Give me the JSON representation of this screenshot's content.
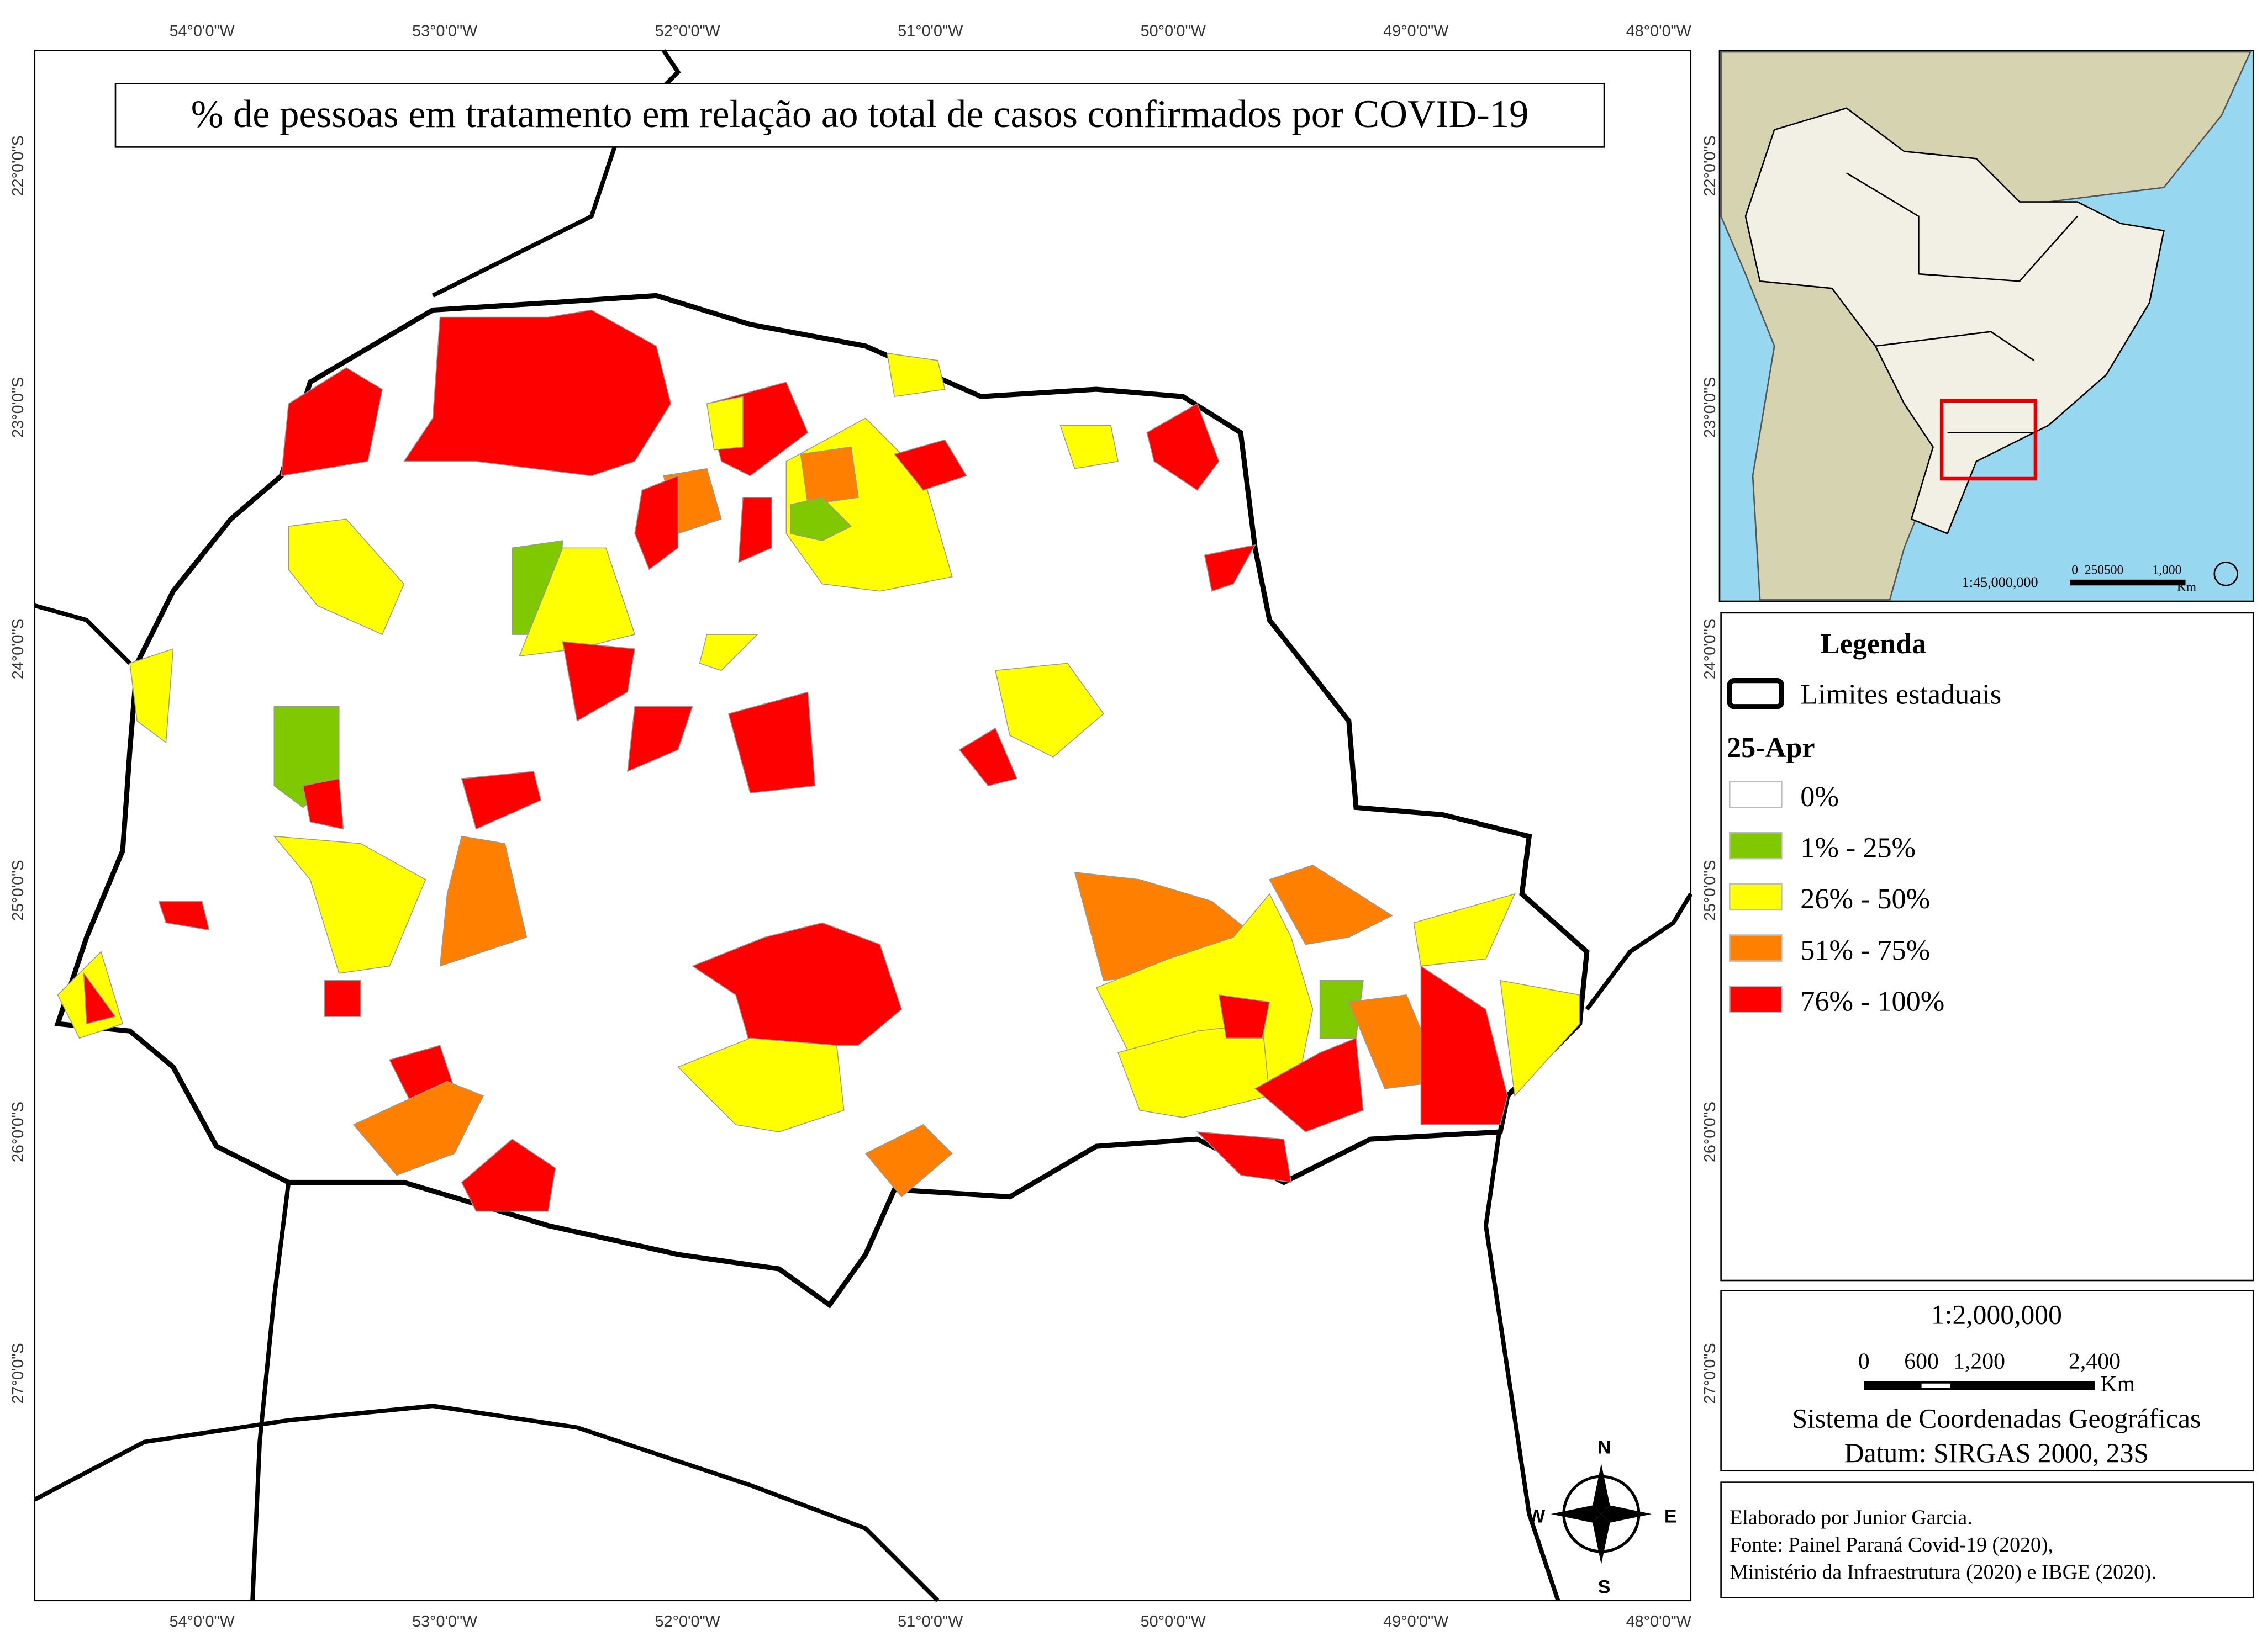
{
  "title": "% de pessoas em tratamento em relação ao total de casos confirmados por COVID-19",
  "longitude_labels": [
    "54°0'0\"W",
    "53°0'0\"W",
    "52°0'0\"W",
    "51°0'0\"W",
    "50°0'0\"W",
    "49°0'0\"W",
    "48°0'0\"W"
  ],
  "latitude_labels": [
    "22°0'0\"S",
    "23°0'0\"S",
    "24°0'0\"S",
    "25°0'0\"S",
    "26°0'0\"S",
    "27°0'0\"S"
  ],
  "inset": {
    "scale": "1:45,000,000",
    "scale_bar": [
      "0",
      "250500",
      "1,000"
    ],
    "unit": "Km"
  },
  "legend": {
    "title": "Legenda",
    "boundary": "Limites estaduais",
    "date": "25-Apr",
    "classes": [
      {
        "label": "0%",
        "color": "#ffffff"
      },
      {
        "label": "1% - 25%",
        "color": "#80c800"
      },
      {
        "label": "26% - 50%",
        "color": "#ffff00"
      },
      {
        "label": "51% - 75%",
        "color": "#ff8000"
      },
      {
        "label": "76% - 100%",
        "color": "#ff0000"
      }
    ]
  },
  "scale": {
    "ratio": "1:2,000,000",
    "ticks": [
      "0",
      "600",
      "1,200",
      "2,400"
    ],
    "unit": "Km",
    "crs": "Sistema de Coordenadas Geográficas",
    "datum": "Datum: SIRGAS 2000, 23S"
  },
  "compass": {
    "north": "N",
    "south": "S",
    "east": "E",
    "west": "W"
  },
  "credits": [
    "Elaborado por Junior Garcia.",
    "Fonte: Painel Paraná Covid-19 (2020),",
    "Ministério da Infraestrutura (2020) e IBGE (2020)."
  ]
}
